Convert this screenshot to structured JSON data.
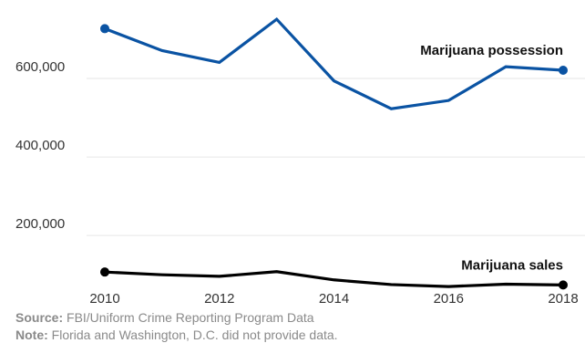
{
  "chart_data": {
    "type": "line",
    "title": "",
    "xlabel": "",
    "ylabel": "",
    "x": [
      2010,
      2011,
      2012,
      2013,
      2014,
      2015,
      2016,
      2017,
      2018
    ],
    "x_ticks": [
      "2010",
      "2012",
      "2014",
      "2016",
      "2018"
    ],
    "y_ticks": [
      "200,000",
      "400,000",
      "600,000"
    ],
    "y_tick_values": [
      200000,
      400000,
      600000
    ],
    "ylim": [
      40000,
      800000
    ],
    "grid": true,
    "series": [
      {
        "name": "Marijuana possession",
        "color": "#0a53a3",
        "values": [
          727000,
          671000,
          641000,
          751000,
          594000,
          523000,
          544000,
          630000,
          621000
        ]
      },
      {
        "name": "Marijuana sales",
        "color": "#000000",
        "values": [
          107000,
          100000,
          96000,
          108000,
          87000,
          75000,
          70000,
          76000,
          74000
        ]
      }
    ]
  },
  "footer": {
    "source_label": "Source:",
    "source_text": " FBI/Uniform Crime Reporting Program Data",
    "note_label": "Note:",
    "note_text": " Florida and Washington, D.C. did not provide data."
  }
}
